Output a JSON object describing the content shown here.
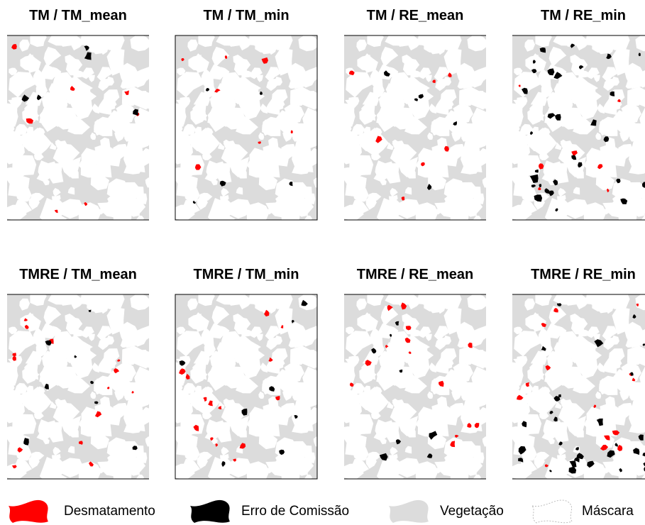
{
  "panels": [
    {
      "title": "TM / TM_mean"
    },
    {
      "title": "TM / TM_min"
    },
    {
      "title": "TM / RE_mean"
    },
    {
      "title": "TM / RE_min"
    },
    {
      "title": "TMRE / TM_mean"
    },
    {
      "title": "TMRE / TM_min"
    },
    {
      "title": "TMRE / RE_mean"
    },
    {
      "title": "TMRE / RE_min"
    }
  ],
  "legend": [
    {
      "label": "Desmatamento",
      "color": "#ff0000"
    },
    {
      "label": "Erro de Comissão",
      "color": "#000000"
    },
    {
      "label": "Vegetação",
      "color": "#dcdcdc"
    },
    {
      "label": "Máscara",
      "color": "#ffffff"
    }
  ]
}
